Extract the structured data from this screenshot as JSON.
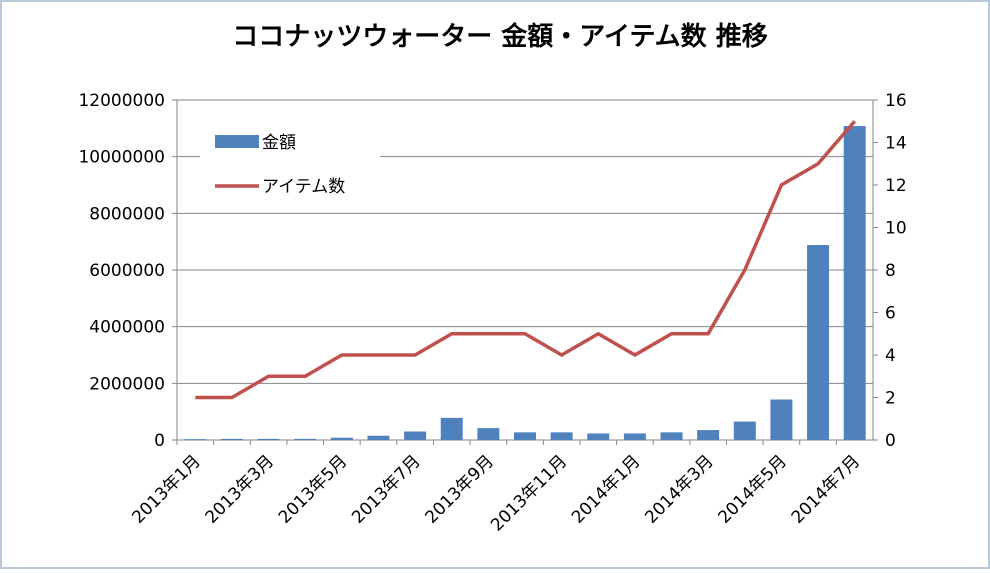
{
  "chart_data": {
    "type": "bar-line",
    "title": "ココナッツウォーター 金額・アイテム数 推移",
    "categories": [
      "2013年1月",
      null,
      "2013年3月",
      null,
      "2013年5月",
      null,
      "2013年7月",
      null,
      "2013年9月",
      null,
      "2013年11月",
      null,
      "2014年1月",
      null,
      "2014年3月",
      null,
      "2014年5月",
      null,
      "2014年7月"
    ],
    "series": [
      {
        "name": "金額",
        "color": "#4f81bd",
        "type": "bar",
        "values": [
          30000,
          40000,
          40000,
          40000,
          80000,
          150000,
          300000,
          780000,
          420000,
          270000,
          270000,
          230000,
          230000,
          270000,
          350000,
          650000,
          1430000,
          6880000,
          11080000
        ]
      },
      {
        "name": "アイテム数",
        "color": "#c0504d",
        "type": "line",
        "axis": "y2",
        "values": [
          2,
          2,
          3,
          3,
          4,
          4,
          4,
          5,
          5,
          5,
          4,
          5,
          4,
          5,
          5,
          8,
          12,
          13,
          15
        ]
      }
    ],
    "ylim": [
      0,
      12000000
    ],
    "yticks": [
      0,
      2000000,
      4000000,
      6000000,
      8000000,
      10000000,
      12000000
    ],
    "y2lim": [
      0,
      16
    ],
    "y2ticks": [
      0,
      2,
      4,
      6,
      8,
      10,
      12,
      14,
      16
    ],
    "grid": true,
    "legend": "top-left"
  }
}
